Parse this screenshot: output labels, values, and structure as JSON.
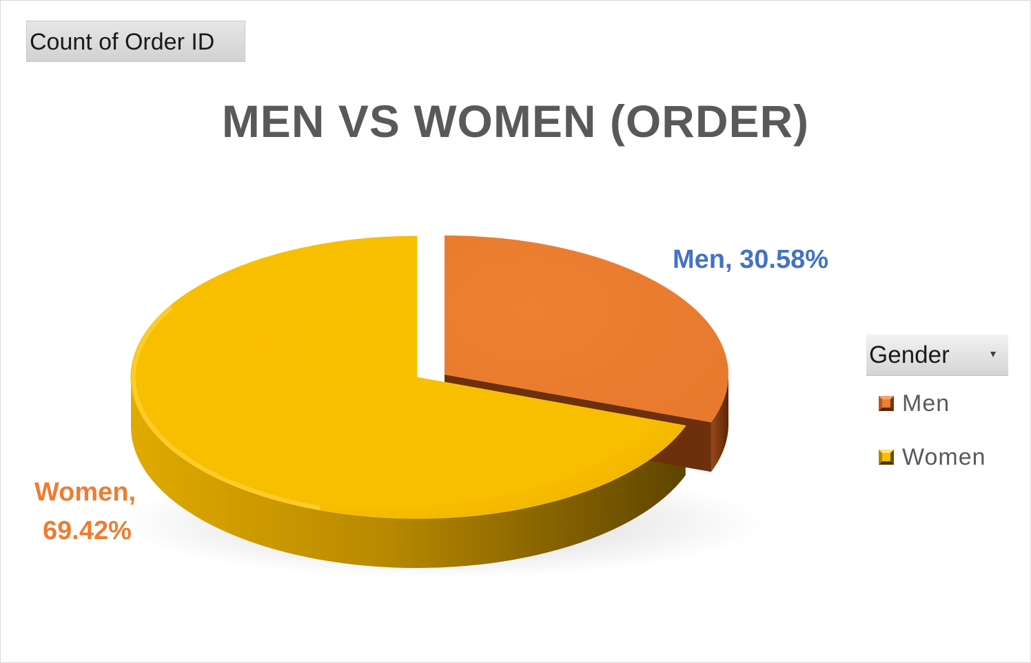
{
  "field_button": {
    "label": "Count of Order ID"
  },
  "legend": {
    "title": "Gender",
    "dropdown_icon": "chevron-down-icon"
  },
  "colors": {
    "men": "#ed7d31",
    "men_side": "#8a3e12",
    "women": "#f8be00",
    "women_side": "#a67c00",
    "title": "#595959",
    "men_label": "#4472c4",
    "women_label": "#ed7d31"
  },
  "chart_data": {
    "type": "pie",
    "title": "MEN VS WOMEN (ORDER)",
    "value_label": "Count of Order ID",
    "categories": [
      "Men",
      "Women"
    ],
    "values": [
      30.58,
      69.42
    ],
    "data_labels": {
      "men": "Men, 30.58%",
      "women_line1": "Women,",
      "women_line2": "69.42%"
    },
    "legend_position": "right",
    "style": "3d-exploded"
  }
}
